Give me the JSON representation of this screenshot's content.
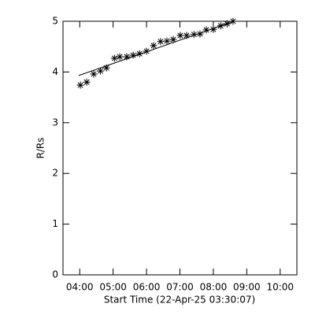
{
  "chart_data": {
    "type": "scatter",
    "xlabel": "Start Time (22-Apr-25 03:30:07)",
    "ylabel": "R/Rs",
    "xlim": [
      3.5,
      10.5
    ],
    "ylim": [
      0,
      5
    ],
    "xticks": [
      {
        "value": 4,
        "label": "04:00"
      },
      {
        "value": 5,
        "label": "05:00"
      },
      {
        "value": 6,
        "label": "06:00"
      },
      {
        "value": 7,
        "label": "07:00"
      },
      {
        "value": 8,
        "label": "08:00"
      },
      {
        "value": 9,
        "label": "09:00"
      },
      {
        "value": 10,
        "label": "10:00"
      }
    ],
    "yticks": [
      0,
      1,
      2,
      3,
      4,
      5
    ],
    "color": "#000000",
    "points": {
      "x": [
        4.02,
        4.21,
        4.42,
        4.62,
        4.8,
        5.04,
        5.2,
        5.41,
        5.6,
        5.79,
        6.0,
        6.21,
        6.42,
        6.61,
        6.8,
        7.01,
        7.2,
        7.42,
        7.6,
        7.79,
        8.0,
        8.22,
        8.41,
        8.59
      ],
      "values": [
        3.74,
        3.8,
        3.96,
        4.02,
        4.08,
        4.27,
        4.3,
        4.3,
        4.33,
        4.36,
        4.41,
        4.52,
        4.6,
        4.61,
        4.64,
        4.72,
        4.72,
        4.74,
        4.75,
        4.83,
        4.84,
        4.91,
        4.95,
        5.0
      ]
    },
    "fit": {
      "x": [
        3.97,
        8.62
      ],
      "values": [
        3.93,
        5.0
      ]
    }
  }
}
